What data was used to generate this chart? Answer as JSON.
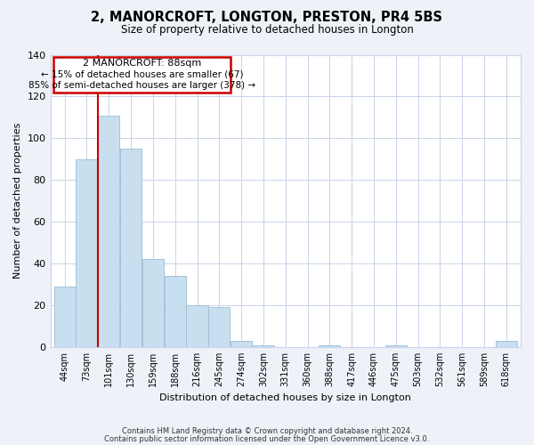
{
  "title": "2, MANORCROFT, LONGTON, PRESTON, PR4 5BS",
  "subtitle": "Size of property relative to detached houses in Longton",
  "xlabel": "Distribution of detached houses by size in Longton",
  "ylabel": "Number of detached properties",
  "bar_color": "#c8dff0",
  "bar_edge_color": "#9bbdd6",
  "marker_color": "#cc0000",
  "bin_labels": [
    "44sqm",
    "73sqm",
    "101sqm",
    "130sqm",
    "159sqm",
    "188sqm",
    "216sqm",
    "245sqm",
    "274sqm",
    "302sqm",
    "331sqm",
    "360sqm",
    "388sqm",
    "417sqm",
    "446sqm",
    "475sqm",
    "503sqm",
    "532sqm",
    "561sqm",
    "589sqm",
    "618sqm"
  ],
  "bar_heights": [
    29,
    90,
    111,
    95,
    42,
    34,
    20,
    19,
    3,
    1,
    0,
    0,
    1,
    0,
    0,
    1,
    0,
    0,
    0,
    0,
    3
  ],
  "ylim": [
    0,
    140
  ],
  "yticks": [
    0,
    20,
    40,
    60,
    80,
    100,
    120,
    140
  ],
  "annotation_title": "2 MANORCROFT: 88sqm",
  "annotation_line1": "← 15% of detached houses are smaller (67)",
  "annotation_line2": "85% of semi-detached houses are larger (378) →",
  "footnote1": "Contains HM Land Registry data © Crown copyright and database right 2024.",
  "footnote2": "Contains public sector information licensed under the Open Government Licence v3.0.",
  "background_color": "#eef2f8",
  "plot_bg_color": "#ffffff",
  "grid_color": "#c8d4e8"
}
